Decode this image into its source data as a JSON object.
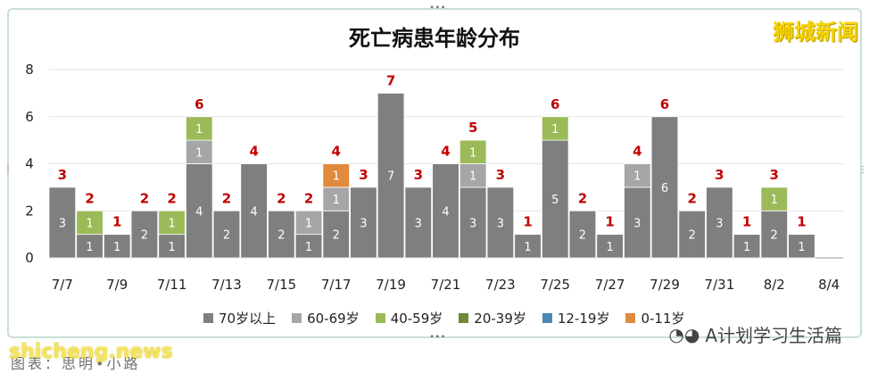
{
  "title": "死亡病患年龄分布",
  "brand": "狮城新闻",
  "watermark_left": "shicheng.news",
  "caption": "图表：思明•小路",
  "watermark_right": "A计划学习生活篇",
  "colors": {
    "70岁以上": "#7f7f7f",
    "60-69岁": "#a6a6a6",
    "40-59岁": "#9bbb59",
    "20-39岁": "#6b8a3a",
    "12-19岁": "#4a8ab0",
    "0-11岁": "#e08a3c",
    "total_label": "#c00000"
  },
  "chart_data": {
    "type": "bar",
    "stacked": true,
    "title": "死亡病患年龄分布",
    "ylim": [
      0,
      8
    ],
    "yticks": [
      0,
      2,
      4,
      6,
      8
    ],
    "legend_position": "bottom",
    "categories": [
      "7/7",
      "7/8",
      "7/9",
      "7/10",
      "7/11",
      "7/12",
      "7/13",
      "7/14",
      "7/15",
      "7/16",
      "7/17",
      "7/18",
      "7/19",
      "7/20",
      "7/21",
      "7/22",
      "7/23",
      "7/24",
      "7/25",
      "7/26",
      "7/27",
      "7/28",
      "7/29",
      "7/30",
      "7/31",
      "8/1",
      "8/2",
      "8/3",
      "8/4"
    ],
    "tick_labels": [
      "7/7",
      "7/9",
      "7/11",
      "7/13",
      "7/15",
      "7/17",
      "7/19",
      "7/21",
      "7/23",
      "7/25",
      "7/27",
      "7/29",
      "7/31",
      "8/2",
      "8/4"
    ],
    "series": [
      {
        "name": "70岁以上",
        "values": [
          3,
          1,
          1,
          2,
          1,
          4,
          2,
          4,
          2,
          1,
          2,
          3,
          7,
          3,
          4,
          3,
          3,
          1,
          5,
          2,
          1,
          3,
          6,
          2,
          3,
          1,
          2,
          1,
          0
        ]
      },
      {
        "name": "60-69岁",
        "values": [
          0,
          0,
          0,
          0,
          0,
          1,
          0,
          0,
          0,
          1,
          1,
          0,
          0,
          0,
          0,
          1,
          0,
          0,
          0,
          0,
          0,
          1,
          0,
          0,
          0,
          0,
          0,
          0,
          0
        ]
      },
      {
        "name": "40-59岁",
        "values": [
          0,
          1,
          0,
          0,
          1,
          1,
          0,
          0,
          0,
          0,
          0,
          0,
          0,
          0,
          0,
          1,
          0,
          0,
          1,
          0,
          0,
          0,
          0,
          0,
          0,
          0,
          1,
          0,
          0
        ]
      },
      {
        "name": "20-39岁",
        "values": [
          0,
          0,
          0,
          0,
          0,
          0,
          0,
          0,
          0,
          0,
          0,
          0,
          0,
          0,
          0,
          0,
          0,
          0,
          0,
          0,
          0,
          0,
          0,
          0,
          0,
          0,
          0,
          0,
          0
        ]
      },
      {
        "name": "12-19岁",
        "values": [
          0,
          0,
          0,
          0,
          0,
          0,
          0,
          0,
          0,
          0,
          0,
          0,
          0,
          0,
          0,
          0,
          0,
          0,
          0,
          0,
          0,
          0,
          0,
          0,
          0,
          0,
          0,
          0,
          0
        ]
      },
      {
        "name": "0-11岁",
        "values": [
          0,
          0,
          0,
          0,
          0,
          0,
          0,
          0,
          0,
          0,
          1,
          0,
          0,
          0,
          0,
          0,
          0,
          0,
          0,
          0,
          0,
          0,
          0,
          0,
          0,
          0,
          0,
          0,
          0
        ]
      }
    ],
    "totals": [
      3,
      2,
      1,
      2,
      2,
      6,
      2,
      4,
      2,
      2,
      4,
      3,
      7,
      3,
      4,
      5,
      3,
      1,
      6,
      2,
      1,
      4,
      6,
      2,
      3,
      1,
      3,
      1,
      null
    ]
  }
}
